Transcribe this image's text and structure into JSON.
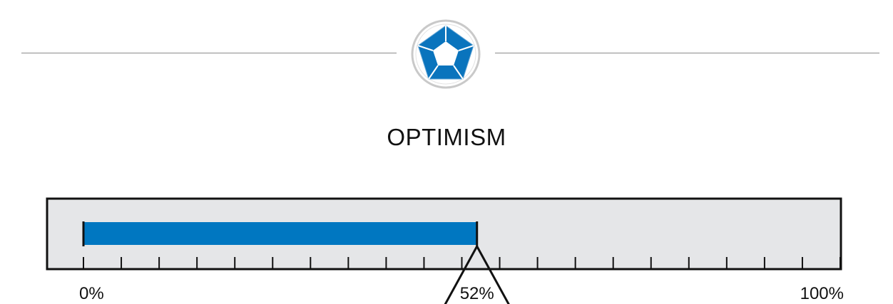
{
  "header": {
    "title": "OPTIMISM",
    "logo_icon": "pentagon-badge-icon"
  },
  "chart_data": {
    "type": "bar",
    "orientation": "horizontal",
    "value": 52,
    "value_label": "52%",
    "xlim": [
      0,
      100
    ],
    "x_ticks": [
      0,
      5,
      10,
      15,
      20,
      25,
      30,
      35,
      40,
      45,
      50,
      55,
      60,
      65,
      70,
      75,
      80,
      85,
      90,
      95,
      100
    ],
    "min_label": "0%",
    "max_label": "100%",
    "grid": false,
    "legend": "none"
  },
  "colors": {
    "bar": "#0077c1",
    "track": "#e5e6e8",
    "outline": "#111111",
    "divider": "#8a8a8a",
    "logo_blue": "#0a74bd",
    "logo_ring": "#c9c9c9"
  }
}
